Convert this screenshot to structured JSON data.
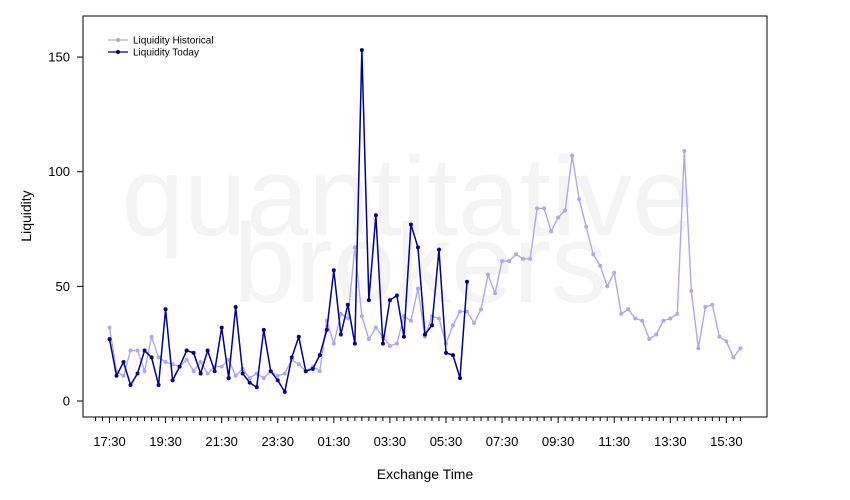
{
  "chart_data": {
    "type": "line",
    "title": "",
    "xlabel": "Exchange Time",
    "ylabel": "Liquidity",
    "ylim": [
      -7,
      168
    ],
    "yticks": [
      0,
      50,
      100,
      150
    ],
    "xtick_labels": [
      "17:30",
      "19:30",
      "21:30",
      "23:30",
      "01:30",
      "03:30",
      "05:30",
      "07:30",
      "09:30",
      "11:30",
      "13:30",
      "15:30"
    ],
    "x_interval_minutes": 15,
    "x_start": "17:00",
    "watermark": [
      "quantitative",
      "brokers"
    ],
    "grid": false,
    "legend_position": "top-left",
    "series": [
      {
        "name": "Liquidity Historical",
        "color": "#aaaaf0",
        "values": [
          32,
          13,
          11,
          22,
          22,
          13,
          28,
          19,
          17,
          16,
          15,
          18,
          13,
          17,
          12,
          15,
          15,
          18,
          11,
          14,
          10,
          12,
          10,
          13,
          11,
          12,
          18,
          16,
          13,
          15,
          13,
          35,
          25,
          38,
          36,
          67,
          37,
          27,
          32,
          28,
          24,
          25,
          37,
          35,
          49,
          28,
          37,
          36,
          25,
          33,
          39,
          39,
          34,
          40,
          55,
          47,
          61,
          61,
          64,
          62,
          62,
          84,
          84,
          74,
          80,
          83,
          107,
          88,
          76,
          64,
          59,
          50,
          56,
          38,
          40,
          36,
          35,
          27,
          29,
          35,
          36,
          38,
          109,
          48,
          23,
          41,
          42,
          28,
          26,
          19,
          23
        ]
      },
      {
        "name": "Liquidity Today",
        "color": "#000088",
        "values": [
          27,
          11,
          17,
          7,
          12,
          22,
          19,
          7,
          40,
          9,
          15,
          22,
          21,
          12,
          22,
          13,
          32,
          10,
          41,
          12,
          8,
          6,
          31,
          13,
          9,
          4,
          19,
          28,
          13,
          14,
          20,
          31,
          57,
          29,
          42,
          25,
          153,
          44,
          81,
          25,
          44,
          46,
          28,
          77,
          67,
          29,
          33,
          66,
          21,
          20,
          10,
          52
        ]
      }
    ]
  }
}
